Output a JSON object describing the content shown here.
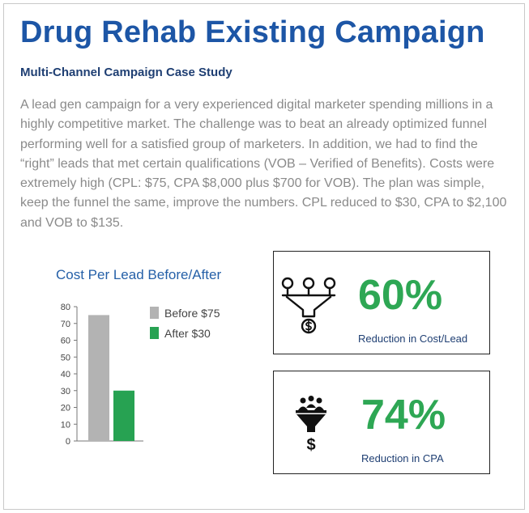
{
  "header": {
    "title": "Drug Rehab Existing Campaign",
    "subtitle": "Multi-Channel Campaign Case Study"
  },
  "description": "A lead gen campaign for a very experienced digital marketer spending millions in a highly competitive market.  The challenge was to beat an already optimized funnel performing well for a satisfied group of marketers.  In addition, we had to find the “right” leads that met certain qualifications (VOB – Verified of Benefits).    Costs were extremely high (CPL: $75, CPA $8,000 plus $700 for VOB).  The plan was simple, keep the funnel the same, improve the numbers.  CPL reduced to $30, CPA to $2,100 and VOB to $135.",
  "stats": [
    {
      "value": "60%",
      "label": "Reduction in Cost/Lead",
      "icon": "funnel-dollar-icon"
    },
    {
      "value": "74%",
      "label": "Reduction in CPA",
      "icon": "funnel-people-dollar-icon"
    }
  ],
  "colors": {
    "title": "#1d56a6",
    "accent_green": "#2ea754",
    "before_gray": "#b3b3b3",
    "after_green": "#27a252"
  },
  "chart_data": {
    "type": "bar",
    "title": "Cost Per Lead Before/After",
    "series": [
      {
        "name": "Before $75",
        "values": [
          75
        ]
      },
      {
        "name": "After $30",
        "values": [
          30
        ]
      }
    ],
    "ylim": [
      0,
      80
    ],
    "yticks": [
      0,
      10,
      20,
      30,
      40,
      50,
      60,
      70,
      80
    ],
    "legend": "right",
    "grid": false
  }
}
